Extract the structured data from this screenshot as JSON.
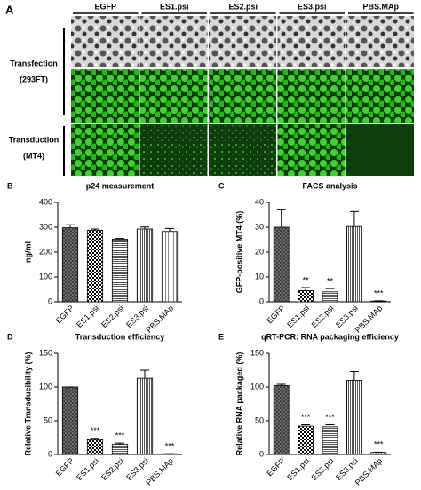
{
  "panel_a": {
    "letter": "A",
    "columns": [
      "EGFP",
      "ES1.psi",
      "ES2.psi",
      "ES3.psi",
      "PBS.MAp"
    ],
    "rows": [
      {
        "label": "Transfection",
        "sub": "(293FT)"
      },
      {
        "label": "Transduction",
        "sub": "(MT4)"
      }
    ]
  },
  "chart_data": [
    {
      "type": "bar",
      "panel": "B",
      "title": "p24 measurement",
      "ylabel": "ng/ml",
      "categories": [
        "EGFP",
        "ES1.psi",
        "ES2.psi",
        "ES3.psi",
        "PBS.MAp"
      ],
      "values": [
        298,
        288,
        252,
        293,
        283
      ],
      "errors": [
        12,
        5,
        3,
        8,
        12
      ],
      "significance": [
        null,
        null,
        null,
        null,
        null
      ],
      "ylim": [
        0,
        400
      ],
      "yticks": [
        0,
        100,
        200,
        300,
        400
      ]
    },
    {
      "type": "bar",
      "panel": "C",
      "title": "FACS analysis",
      "ylabel": "GFP-positive MT4 (%)",
      "categories": [
        "EGFP",
        "ES1.psi",
        "ES2.psi",
        "ES3.psi",
        "PBS.MAp"
      ],
      "values": [
        30,
        4.5,
        4,
        30.3,
        0.3
      ],
      "errors": [
        7,
        1.2,
        1.3,
        6,
        0.1
      ],
      "significance": [
        null,
        "**",
        "**",
        null,
        "***"
      ],
      "ylim": [
        0,
        40
      ],
      "yticks": [
        0,
        10,
        20,
        30,
        40
      ]
    },
    {
      "type": "bar",
      "panel": "D",
      "title": "Transduction efficiency",
      "ylabel": "Relative Transducibility (%)",
      "categories": [
        "EGFP",
        "ES1.psi",
        "ES2.psi",
        "ES3.psi",
        "PBS.MAp"
      ],
      "values": [
        100,
        22,
        15,
        113,
        1
      ],
      "errors": [
        0,
        2,
        2,
        12,
        0
      ],
      "significance": [
        null,
        "***",
        "***",
        null,
        "***"
      ],
      "ylim": [
        0,
        150
      ],
      "yticks": [
        0,
        50,
        100,
        150
      ]
    },
    {
      "type": "bar",
      "panel": "E",
      "title": "qRT-PCR: RNA packaging efficiency",
      "ylabel": "Relative RNA packaged (%)",
      "categories": [
        "EGFP",
        "ES1.psi",
        "ES2.psi",
        "ES3.psi",
        "PBS.MAp"
      ],
      "values": [
        102,
        42,
        41,
        110,
        3
      ],
      "errors": [
        2,
        2,
        3,
        13,
        0.5
      ],
      "significance": [
        null,
        "***",
        "***",
        null,
        "***"
      ],
      "ylim": [
        0,
        150
      ],
      "yticks": [
        0,
        50,
        100,
        150
      ]
    }
  ]
}
